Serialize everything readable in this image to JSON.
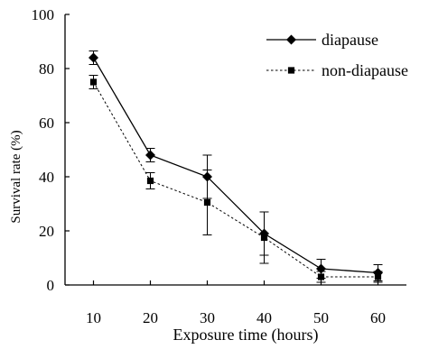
{
  "chart_data": {
    "type": "line",
    "title": "",
    "xlabel": "Exposure time (hours)",
    "ylabel": "Survival  rate (%)",
    "x": [
      10,
      20,
      30,
      40,
      50,
      60
    ],
    "xlim": [
      5,
      65
    ],
    "ylim": [
      0,
      100
    ],
    "yticks": [
      0,
      20,
      40,
      60,
      80,
      100
    ],
    "xticks": [
      10,
      20,
      30,
      40,
      50,
      60
    ],
    "grid": false,
    "legend_position": "top-right",
    "series": [
      {
        "name": "diapause",
        "marker": "diamond",
        "line_style": "solid",
        "values": [
          84,
          48,
          40,
          19,
          6,
          4.5
        ],
        "errors": [
          2.5,
          2.5,
          8,
          8,
          3.5,
          3
        ]
      },
      {
        "name": "non-diapause",
        "marker": "square",
        "line_style": "dotted",
        "values": [
          75,
          38.5,
          30.5,
          17.5,
          3,
          3
        ],
        "errors": [
          2.5,
          3,
          12,
          9.5,
          2,
          2
        ]
      }
    ]
  }
}
